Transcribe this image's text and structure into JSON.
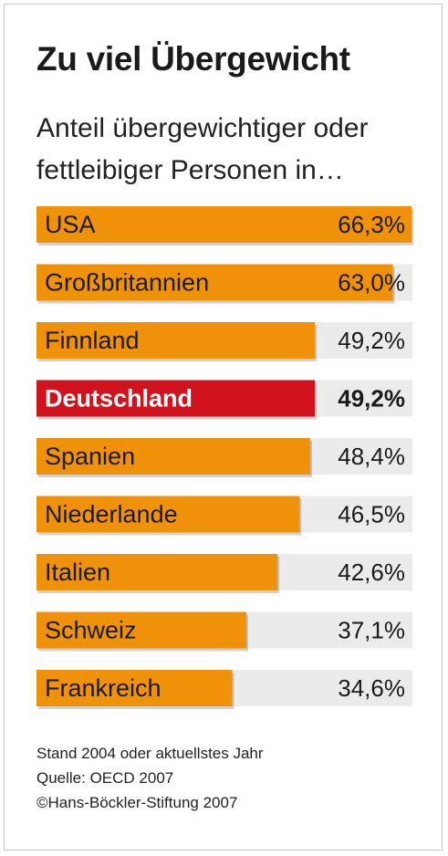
{
  "title": "Zu viel Übergewicht",
  "subtitle": "Anteil übergewichtiger oder fettleibiger Personen in…",
  "chart_data": {
    "type": "bar",
    "orientation": "horizontal",
    "categories": [
      "USA",
      "Großbritannien",
      "Finnland",
      "Deutschland",
      "Spanien",
      "Niederlande",
      "Italien",
      "Schweiz",
      "Frankreich"
    ],
    "values": [
      66.3,
      63.0,
      49.2,
      49.2,
      48.4,
      46.5,
      42.6,
      37.1,
      34.6
    ],
    "value_labels": [
      "66,3%",
      "63,0%",
      "49,2%",
      "49,2%",
      "48,4%",
      "46,5%",
      "42,6%",
      "37,1%",
      "34,6%"
    ],
    "highlight": "Deutschland",
    "unit": "%",
    "xlim": [
      0,
      70
    ]
  },
  "colors": {
    "bar": "#f0910a",
    "highlight": "#d0131d",
    "track": "#ebebeb",
    "bar_label": "#1a1a1a",
    "highlight_label": "#ffffff"
  },
  "footer": {
    "line1": "Stand 2004 oder aktuellstes Jahr",
    "line2": "Quelle: OECD 2007",
    "line3": "©Hans-Böckler-Stiftung 2007"
  }
}
